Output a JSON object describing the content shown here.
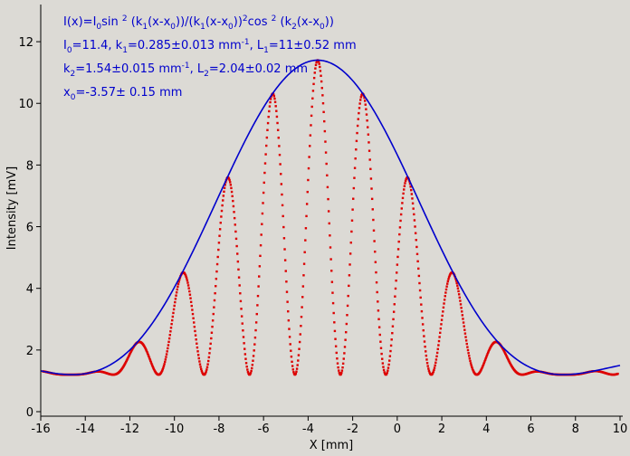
{
  "chart_data": {
    "type": "scatter",
    "xlabel": "X [mm]",
    "ylabel": "Intensity [mV]",
    "xlim": [
      -16,
      10
    ],
    "ylim": [
      0,
      13
    ],
    "x_ticks": [
      "-16",
      "-14",
      "-12",
      "-10",
      "-8",
      "-6",
      "-4",
      "-2",
      "0",
      "2",
      "4",
      "6",
      "8",
      "10"
    ],
    "y_ticks": [
      "0",
      "2",
      "4",
      "6",
      "8",
      "10",
      "12"
    ],
    "colors": {
      "data_points": "#dd0000",
      "fit_line": "#0000cc",
      "background": "#dcdad5"
    },
    "annotations": {
      "formula": {
        "p1": "I(x)=I",
        "p1_sub": "0",
        "p2": "sin ",
        "p2_sup": "2",
        "p3": " (k",
        "p3_sub": "1",
        "p4": "(x-x",
        "p4_sub": "0",
        "p5": "))/(k",
        "p5_sub": "1",
        "p6": "(x-x",
        "p6_sub": "0",
        "p7": "))",
        "p7_sup": "2",
        "p8": "cos ",
        "p8_sup": "2",
        "p9": " (k",
        "p9_sub": "2",
        "p10": "(x-x",
        "p10_sub": "0",
        "p11": "))"
      },
      "line2": {
        "a": "I",
        "a_sub": "0",
        "b": "=11.4,  k",
        "b_sub": "1",
        "c": "=0.285±0.013 mm",
        "c_sup": "-1",
        "d": ",   L",
        "d_sub": "1",
        "e": "=11±0.52 mm"
      },
      "line3": {
        "a": "k",
        "a_sub": "2",
        "b": "=1.54±0.015 mm",
        "b_sup": "-1",
        "c": ",   L",
        "c_sub": "2",
        "d": "=2.04±0.02 mm"
      },
      "line4": {
        "a": "x",
        "a_sub": "0",
        "b": "=-3.57±   0.15 mm"
      }
    },
    "series": [
      {
        "type": "scatter",
        "model": {
          "I0": 11.4,
          "k1": 0.285,
          "k2": 1.54,
          "x0": -3.57,
          "baseline": 1.2
        },
        "x_range": [
          -15.9,
          9.9
        ],
        "step": 0.025
      },
      {
        "type": "line",
        "model": {
          "I0": 11.4,
          "k1": 0.285,
          "x0": -3.57,
          "baseline": 1.2
        },
        "x_range": [
          -16,
          10
        ],
        "step": 0.05
      }
    ]
  }
}
